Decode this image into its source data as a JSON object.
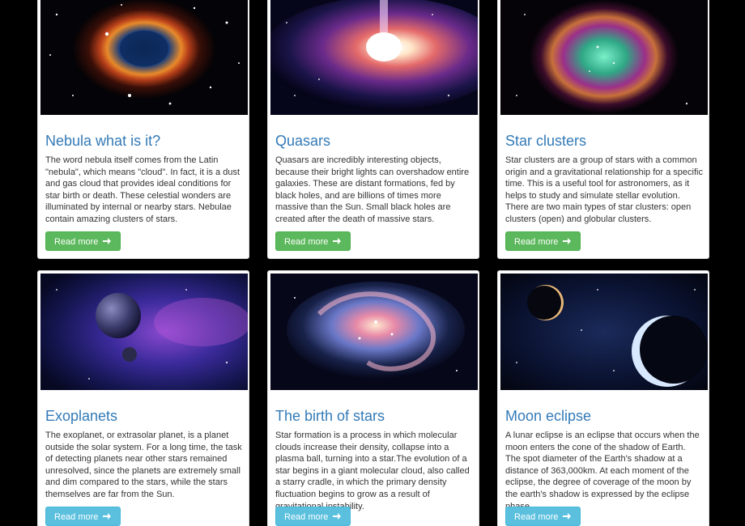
{
  "cards": [
    {
      "title": "Nebula what is it?",
      "text": "The word nebula itself comes from the Latin \"nebula\", which means \"cloud\". In fact, it is a dust and gas cloud that provides ideal conditions for star birth or death. These celestial wonders are illuminated by internal or nearby stars. Nebulae contain amazing clusters of stars.",
      "button": "Read more",
      "button_color": "#5cb85c",
      "image": "nebula-image"
    },
    {
      "title": "Quasars",
      "text": "Quasars are incredibly interesting objects, because their bright lights can overshadow entire galaxies. These are distant formations, fed by black holes, and are billions of times more massive than the Sun. Small black holes are created after the death of massive stars.",
      "button": "Read more",
      "button_color": "#5cb85c",
      "image": "quasar-image"
    },
    {
      "title": "Star clusters",
      "text": "Star clusters are a group of stars with a common origin and a gravitational relationship for a specific time. This is a useful tool for astronomers, as it helps to study and simulate stellar evolution. There are two main types of star clusters: open clusters (open) and globular clusters.",
      "button": "Read more",
      "button_color": "#5cb85c",
      "image": "star-cluster-image"
    },
    {
      "title": "Exoplanets",
      "text": "The exoplanet, or extrasolar planet, is a planet outside the solar system. For a long time, the task of detecting planets near other stars remained unresolved, since the planets are extremely small and dim compared to the stars, while the stars themselves are far from the Sun.",
      "button": "Read more",
      "button_color": "#5bc0de",
      "image": "exoplanets-image"
    },
    {
      "title": "The birth of stars",
      "text": "Star formation is a process in which molecular clouds increase their density, collapse into a plasma ball, turning into a star.The evolution of a star begins in a giant molecular cloud, also called a starry cradle, in which the primary density fluctuation begins to grow as a result of gravitational instability.",
      "button": "Read more",
      "button_color": "#5bc0de",
      "image": "star-birth-image"
    },
    {
      "title": "Moon eclipse",
      "text": "A lunar eclipse is an eclipse that occurs when the moon enters the cone of the shadow of Earth. The spot diameter of the Earth's shadow at a distance of 363,000km. At each moment of the eclipse, the degree of coverage of the moon by the earth's shadow is expressed by the eclipse phase.",
      "button": "Read more",
      "button_color": "#5bc0de",
      "image": "eclipse-image"
    }
  ]
}
